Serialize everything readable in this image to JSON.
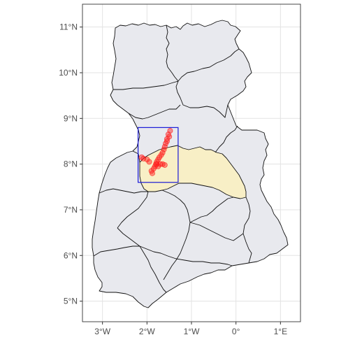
{
  "map": {
    "y_ticks": [
      "11°N",
      "10°N",
      "9°N",
      "8°N",
      "7°N",
      "6°N",
      "5°N"
    ],
    "x_ticks": [
      "3°W",
      "2°W",
      "1°W",
      "0°",
      "1°E"
    ],
    "colors": {
      "panel_border": "#333333",
      "grid": "#e3e3e3",
      "region_fill": "#e8e9ee",
      "boundary": "#111111",
      "highlight_fill": "#f8efc6",
      "bbox": "#1a1ad6",
      "points": "#ff1a1a"
    },
    "layers": [
      "region-boundaries",
      "highlighted-region",
      "bounding-box",
      "point-observations"
    ]
  },
  "chart_data": {
    "type": "map",
    "x_axis": "longitude",
    "y_axis": "latitude",
    "xlim": [
      -3.45,
      1.45
    ],
    "ylim": [
      4.55,
      11.5
    ],
    "grid": true,
    "legend": "none",
    "bbox_extent": {
      "lon": [
        -2.2,
        -1.3
      ],
      "lat": [
        7.6,
        8.8
      ]
    },
    "points": [
      {
        "lon": -1.48,
        "lat": 8.73
      },
      {
        "lon": -1.52,
        "lat": 8.65
      },
      {
        "lon": -1.55,
        "lat": 8.55
      },
      {
        "lon": -1.58,
        "lat": 8.45
      },
      {
        "lon": -1.6,
        "lat": 8.38
      },
      {
        "lon": -1.62,
        "lat": 8.32
      },
      {
        "lon": -1.65,
        "lat": 8.25
      },
      {
        "lon": -1.68,
        "lat": 8.2
      },
      {
        "lon": -1.72,
        "lat": 8.15
      },
      {
        "lon": -1.75,
        "lat": 8.1
      },
      {
        "lon": -1.78,
        "lat": 8.05
      },
      {
        "lon": -1.8,
        "lat": 8.0
      },
      {
        "lon": -1.82,
        "lat": 7.95
      },
      {
        "lon": -1.85,
        "lat": 7.9
      },
      {
        "lon": -1.9,
        "lat": 7.85
      },
      {
        "lon": -1.88,
        "lat": 7.8
      },
      {
        "lon": -1.75,
        "lat": 7.95
      },
      {
        "lon": -1.7,
        "lat": 8.0
      },
      {
        "lon": -1.65,
        "lat": 8.0
      },
      {
        "lon": -1.6,
        "lat": 7.98
      },
      {
        "lon": -1.78,
        "lat": 8.0
      },
      {
        "lon": -1.95,
        "lat": 8.05
      },
      {
        "lon": -2.0,
        "lat": 8.1
      },
      {
        "lon": -2.08,
        "lat": 8.12
      },
      {
        "lon": -2.12,
        "lat": 8.15
      },
      {
        "lon": -1.55,
        "lat": 8.5
      },
      {
        "lon": -1.5,
        "lat": 8.6
      }
    ]
  }
}
